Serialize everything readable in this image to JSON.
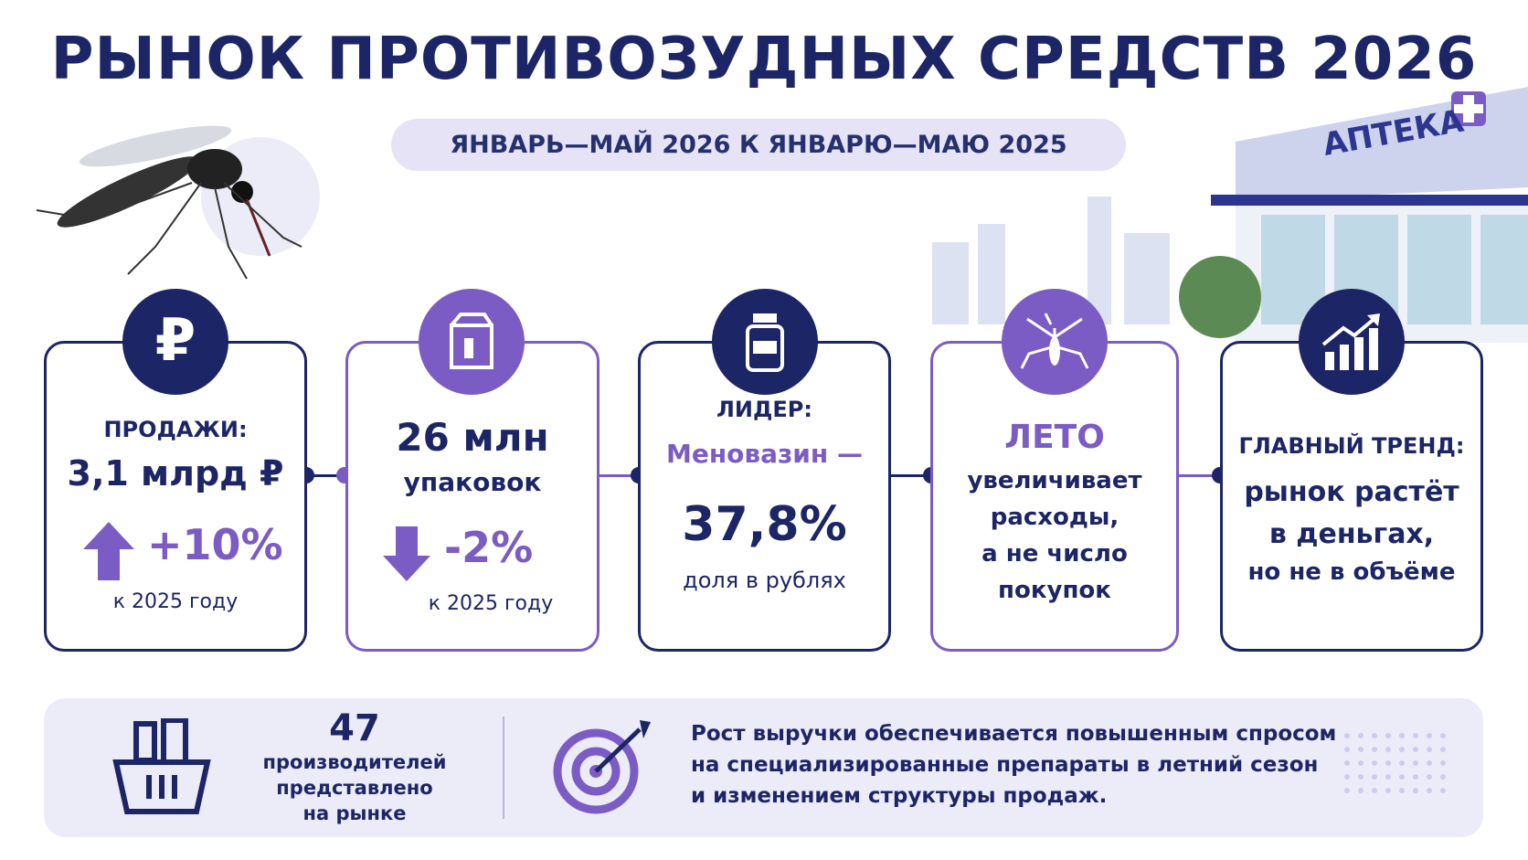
{
  "header": {
    "title": "РЫНОК ПРОТИВОЗУДНЫХ СРЕДСТВ 2026",
    "subtitle": "ЯНВАРЬ—МАЙ 2026 К ЯНВАРЮ—МАЮ 2025",
    "pharmacy_sign": "АПТЕКА"
  },
  "cards": [
    {
      "label": "ПРОДАЖИ:",
      "value": "3,1 млрд ₽",
      "change": "+10%",
      "note": "к 2025 году"
    },
    {
      "value": "26 млн",
      "value_unit": "упаковок",
      "change": "-2%",
      "note": "к 2025 году"
    },
    {
      "label": "ЛИДЕР:",
      "leader": "Меновазин —",
      "value": "37,8%",
      "note": "доля в рублях"
    },
    {
      "label": "ЛЕТО",
      "lines": [
        "увеличивает",
        "расходы,",
        "а не число",
        "покупок"
      ]
    },
    {
      "label": "ГЛАВНЫЙ ТРЕНД:",
      "lines": [
        "рынок растёт",
        "в деньгах,"
      ],
      "note": "но не в объёме"
    }
  ],
  "footer": {
    "count": "47",
    "count_lines": [
      "производителей",
      "представлено",
      "на рынке"
    ],
    "text_lines": [
      "Рост выручки обеспечивается повышенным спросом",
      "на специализированные препараты в летний сезон",
      "и изменением структуры продаж."
    ]
  }
}
